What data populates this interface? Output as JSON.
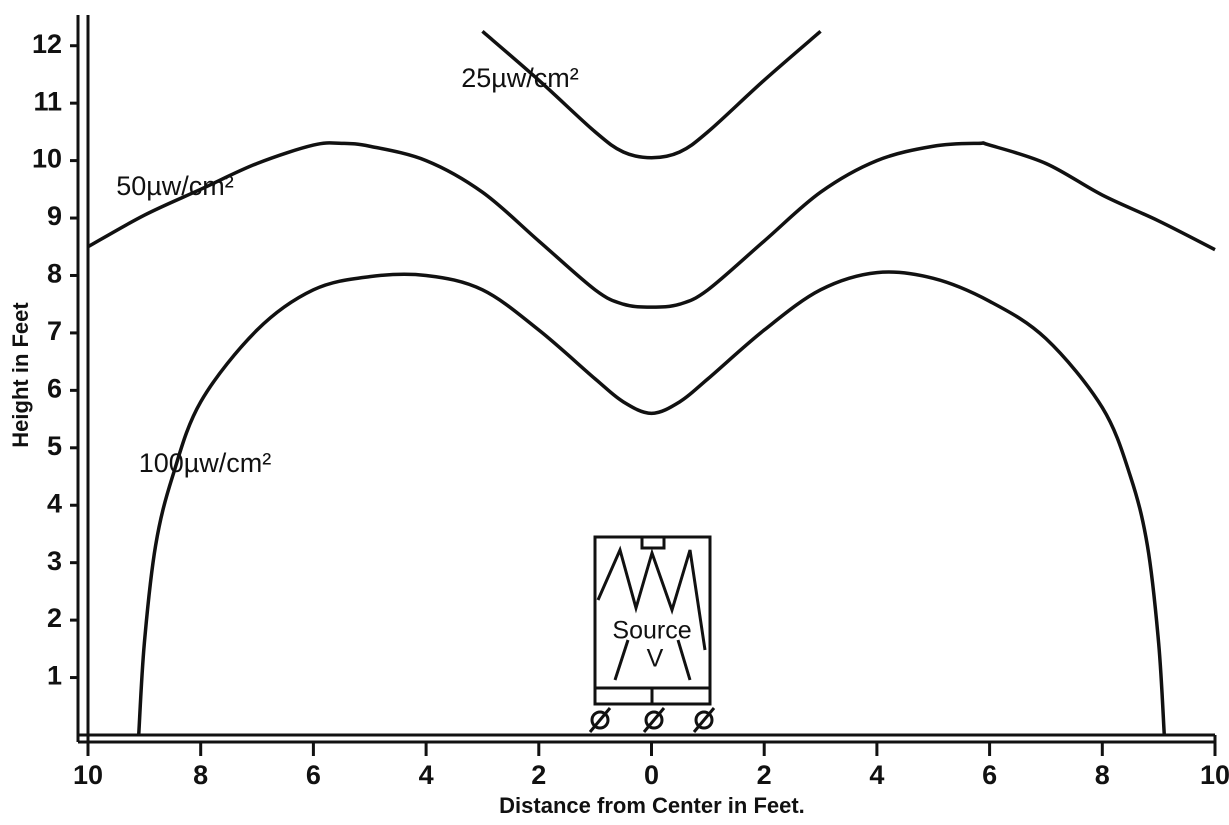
{
  "chart_data": {
    "type": "line",
    "xlabel": "Distance from Center in Feet.",
    "ylabel": "Height in Feet",
    "xlim": [
      -10,
      10
    ],
    "ylim": [
      0,
      12.5
    ],
    "xticks": [
      {
        "value": -10,
        "label": "10"
      },
      {
        "value": -8,
        "label": "8"
      },
      {
        "value": -6,
        "label": "6"
      },
      {
        "value": -4,
        "label": "4"
      },
      {
        "value": -2,
        "label": "2"
      },
      0,
      2,
      4,
      6,
      8,
      10
    ],
    "yticks": [
      1,
      2,
      3,
      4,
      5,
      6,
      7,
      8,
      9,
      10,
      11,
      12
    ],
    "annotations": [
      "Source",
      "V"
    ],
    "series": [
      {
        "name": "25µw/cm²",
        "color": "#111111",
        "x": [
          -3,
          -2,
          -1,
          -0.5,
          0,
          0.5,
          1,
          2,
          3
        ],
        "values": [
          12.25,
          11.4,
          10.5,
          10.15,
          10.05,
          10.15,
          10.5,
          11.4,
          12.25
        ]
      },
      {
        "name": "50µw/cm²",
        "color": "#111111",
        "x": [
          -10,
          -9,
          -8,
          -7,
          -6,
          -5.5,
          -5,
          -4,
          -3,
          -2,
          -1,
          -0.5,
          0,
          0.5,
          1,
          2,
          3,
          4,
          5,
          5.8,
          6,
          7,
          8,
          9,
          10
        ],
        "values": [
          8.5,
          9.05,
          9.5,
          9.95,
          10.27,
          10.3,
          10.25,
          10.0,
          9.45,
          8.6,
          7.75,
          7.5,
          7.45,
          7.5,
          7.75,
          8.6,
          9.45,
          10.0,
          10.25,
          10.3,
          10.27,
          9.95,
          9.4,
          8.95,
          8.45
        ]
      },
      {
        "name": "100µw/cm²",
        "color": "#111111",
        "x": [
          -9.1,
          -9,
          -8.8,
          -8.5,
          -8,
          -7,
          -6,
          -5,
          -4,
          -3,
          -2,
          -1,
          -0.5,
          0,
          0.5,
          1,
          2,
          3,
          4,
          5,
          6,
          7,
          8,
          8.5,
          8.8,
          9,
          9.1
        ],
        "values": [
          0,
          1.6,
          3.3,
          4.5,
          5.8,
          7.05,
          7.75,
          7.98,
          8.0,
          7.75,
          7.05,
          6.2,
          5.8,
          5.6,
          5.8,
          6.2,
          7.05,
          7.75,
          8.05,
          7.95,
          7.55,
          6.9,
          5.7,
          4.5,
          3.3,
          1.6,
          0
        ]
      }
    ]
  }
}
